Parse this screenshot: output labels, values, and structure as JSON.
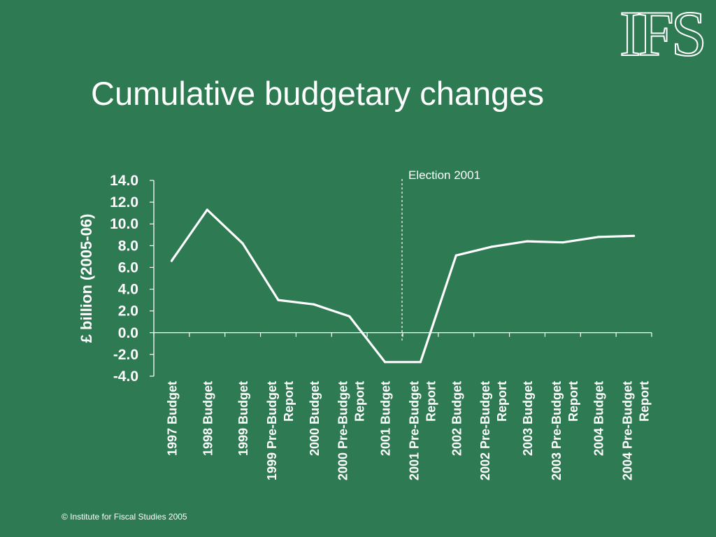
{
  "logo": "IFS",
  "footer": "© Institute for Fiscal Studies 2005",
  "colors": {
    "background": "#2e7a52",
    "line": "#ffffff",
    "text": "#ffffff"
  },
  "chart_data": {
    "type": "line",
    "title": "Cumulative budgetary changes",
    "ylabel": "£ billion (2005-06)",
    "xlabel": "",
    "ylim": [
      -4.0,
      14.0
    ],
    "yticks": [
      "14.0",
      "12.0",
      "10.0",
      "8.0",
      "6.0",
      "4.0",
      "2.0",
      "0.0",
      "-2.0",
      "-4.0"
    ],
    "categories": [
      "1997 Budget",
      "1998 Budget",
      "1999 Budget",
      "1999 Pre-Budget Report",
      "2000 Budget",
      "2000 Pre-Budget Report",
      "2001 Budget",
      "2001 Pre-Budget Report",
      "2002 Budget",
      "2002 Pre-Budget Report",
      "2003 Budget",
      "2003 Pre-Budget Report",
      "2004 Budget",
      "2004 Pre-Budget Report"
    ],
    "category_lines": [
      [
        "1997 Budget"
      ],
      [
        "1998 Budget"
      ],
      [
        "1999 Budget"
      ],
      [
        "1999 Pre-Budget",
        "Report"
      ],
      [
        "2000 Budget"
      ],
      [
        "2000 Pre-Budget",
        "Report"
      ],
      [
        "2001 Budget"
      ],
      [
        "2001 Pre-Budget",
        "Report"
      ],
      [
        "2002 Budget"
      ],
      [
        "2002 Pre-Budget",
        "Report"
      ],
      [
        "2003 Budget"
      ],
      [
        "2003 Pre-Budget",
        "Report"
      ],
      [
        "2004 Budget"
      ],
      [
        "2004 Pre-Budget",
        "Report"
      ]
    ],
    "values": [
      6.6,
      11.3,
      8.2,
      3.0,
      2.6,
      1.5,
      -2.7,
      -2.7,
      7.1,
      7.9,
      8.4,
      8.3,
      8.8,
      8.9
    ],
    "annotations": [
      {
        "text": "Election 2001",
        "between": [
          "2001 Budget",
          "2001 Pre-Budget Report"
        ],
        "style": "dashed-vertical-line"
      }
    ],
    "grid": false,
    "legend": "none"
  }
}
